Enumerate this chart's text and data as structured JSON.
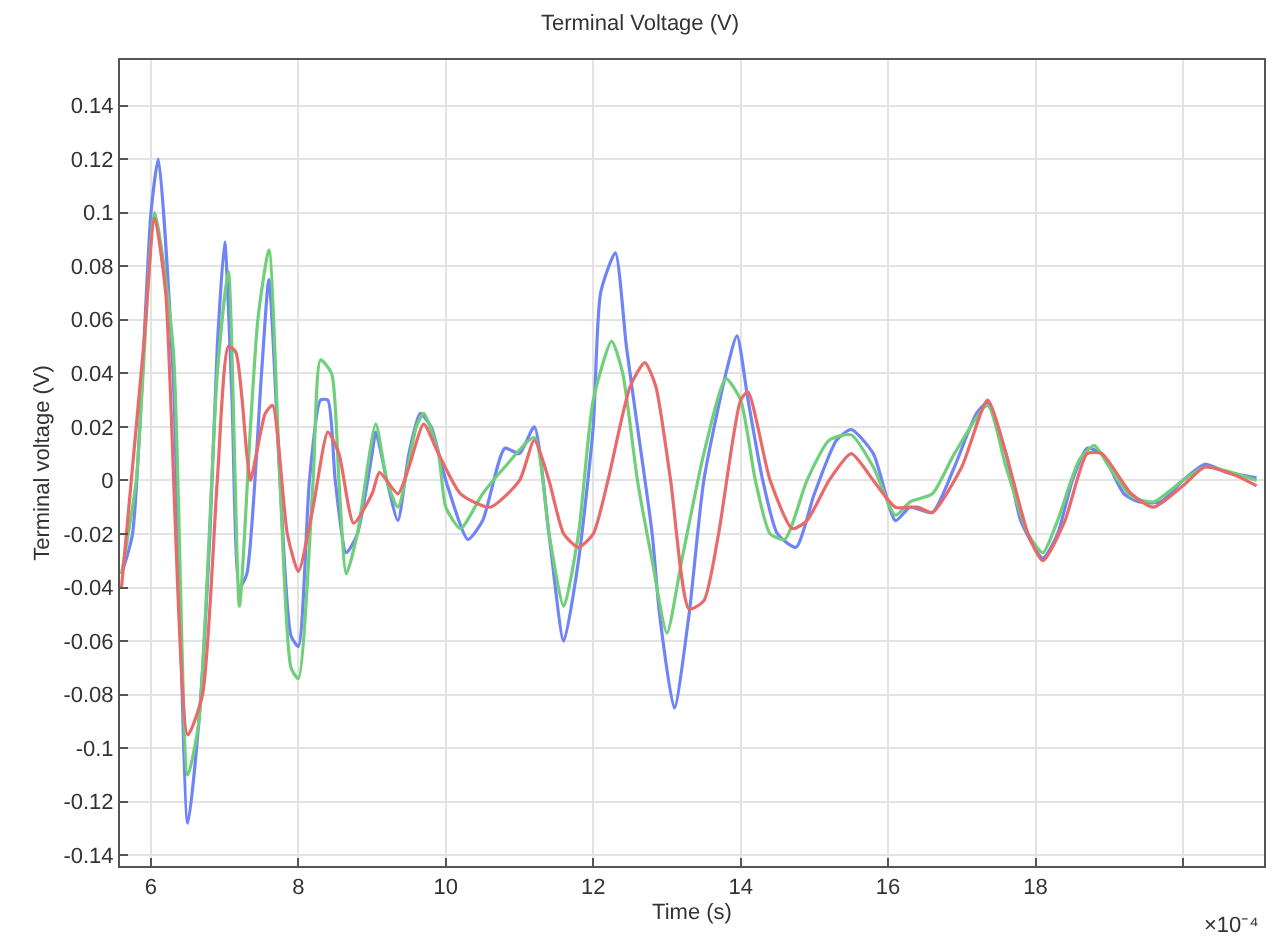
{
  "chart_data": {
    "type": "line",
    "title": "Terminal Voltage (V)",
    "xlabel": "Time (s)",
    "ylabel": "Terminal voltage (V)",
    "xlim": [
      5.58,
      21.1
    ],
    "xticks": [
      6,
      8,
      10,
      12,
      14,
      16,
      18,
      {
        "value": 20,
        "label": null
      }
    ],
    "ylim": [
      -0.144,
      0.157
    ],
    "yticks": [
      0.14,
      0.12,
      0.1,
      0.08,
      0.06,
      0.04,
      0.02,
      0,
      -0.02,
      -0.04,
      -0.06,
      -0.08,
      -0.1,
      -0.12,
      -0.14
    ],
    "annotations": [
      "×10⁻⁴"
    ],
    "grid": true,
    "marker": "none",
    "line_style": "solid",
    "series": [
      {
        "color": "#6f84f7",
        "x": [
          5.6,
          5.75,
          6.0,
          6.1,
          6.3,
          6.5,
          6.65,
          6.8,
          6.9,
          7.0,
          7.1,
          7.2,
          7.3,
          7.5,
          7.6,
          7.75,
          7.9,
          8.0,
          8.15,
          8.3,
          8.4,
          8.5,
          8.65,
          8.8,
          9.0,
          9.05,
          9.2,
          9.35,
          9.5,
          9.65,
          9.8,
          10.0,
          10.3,
          10.5,
          10.8,
          11.0,
          11.2,
          11.4,
          11.6,
          11.8,
          12.0,
          12.1,
          12.3,
          12.45,
          12.6,
          12.8,
          12.9,
          13.1,
          13.3,
          13.5,
          13.8,
          13.95,
          14.1,
          14.3,
          14.5,
          14.75,
          15.0,
          15.3,
          15.5,
          15.8,
          16.1,
          16.3,
          16.6,
          16.9,
          17.2,
          17.35,
          17.6,
          17.8,
          18.1,
          18.3,
          18.5,
          18.7,
          18.9,
          19.2,
          19.4,
          19.7,
          20.0,
          20.3,
          20.6,
          21.0
        ],
        "values": [
          -0.035,
          -0.02,
          0.1,
          0.12,
          0.04,
          -0.128,
          -0.09,
          -0.02,
          0.05,
          0.089,
          0.03,
          -0.04,
          -0.035,
          0.04,
          0.075,
          0.0,
          -0.058,
          -0.062,
          0.0,
          0.03,
          0.03,
          0.0,
          -0.027,
          -0.02,
          0.01,
          0.018,
          0.0,
          -0.015,
          0.01,
          0.025,
          0.02,
          0.0,
          -0.022,
          -0.015,
          0.012,
          0.01,
          0.02,
          -0.02,
          -0.06,
          -0.03,
          0.02,
          0.07,
          0.085,
          0.05,
          0.02,
          -0.02,
          -0.05,
          -0.085,
          -0.05,
          0.0,
          0.04,
          0.054,
          0.03,
          0.0,
          -0.02,
          -0.025,
          -0.005,
          0.015,
          0.019,
          0.01,
          -0.015,
          -0.01,
          -0.012,
          0.005,
          0.025,
          0.029,
          0.01,
          -0.015,
          -0.029,
          -0.02,
          0.0,
          0.012,
          0.01,
          -0.005,
          -0.008,
          -0.008,
          0.0,
          0.006,
          0.003,
          0.001
        ]
      },
      {
        "color": "#6fcf7a",
        "x": [
          5.6,
          5.8,
          6.05,
          6.3,
          6.5,
          6.65,
          6.9,
          7.05,
          7.2,
          7.35,
          7.45,
          7.6,
          7.75,
          7.9,
          8.0,
          8.2,
          8.3,
          8.45,
          8.55,
          8.65,
          8.8,
          9.05,
          9.2,
          9.35,
          9.6,
          9.7,
          9.9,
          10.0,
          10.2,
          10.5,
          10.8,
          11.2,
          11.4,
          11.6,
          11.8,
          12.0,
          12.25,
          12.4,
          12.6,
          12.8,
          13.0,
          13.2,
          13.5,
          13.8,
          14.0,
          14.2,
          14.4,
          14.6,
          14.9,
          15.2,
          15.5,
          15.8,
          16.1,
          16.3,
          16.6,
          16.9,
          17.35,
          17.6,
          17.9,
          18.1,
          18.3,
          18.6,
          18.8,
          19.0,
          19.3,
          19.6,
          20.0,
          20.3,
          21.0
        ],
        "values": [
          -0.035,
          0.0,
          0.1,
          0.05,
          -0.11,
          -0.09,
          0.04,
          0.078,
          -0.047,
          0.02,
          0.06,
          0.086,
          0.0,
          -0.07,
          -0.074,
          0.0,
          0.045,
          0.04,
          0.0,
          -0.035,
          -0.02,
          0.021,
          0.0,
          -0.01,
          0.02,
          0.025,
          0.01,
          -0.01,
          -0.018,
          -0.005,
          0.005,
          0.016,
          -0.02,
          -0.047,
          -0.02,
          0.03,
          0.052,
          0.04,
          0.0,
          -0.03,
          -0.057,
          -0.03,
          0.01,
          0.038,
          0.03,
          0.0,
          -0.02,
          -0.022,
          0.0,
          0.015,
          0.017,
          0.005,
          -0.013,
          -0.008,
          -0.005,
          0.01,
          0.028,
          0.005,
          -0.02,
          -0.027,
          -0.015,
          0.008,
          0.013,
          0.005,
          -0.006,
          -0.008,
          0.0,
          0.005,
          0.0
        ]
      },
      {
        "color": "#e96a6a",
        "x": [
          5.6,
          5.9,
          6.05,
          6.2,
          6.5,
          6.7,
          6.9,
          7.05,
          7.15,
          7.3,
          7.35,
          7.55,
          7.65,
          7.85,
          8.0,
          8.2,
          8.4,
          8.55,
          8.75,
          9.0,
          9.1,
          9.35,
          9.5,
          9.7,
          9.9,
          10.2,
          10.6,
          11.0,
          11.2,
          11.4,
          11.6,
          11.8,
          12.0,
          12.2,
          12.5,
          12.7,
          12.85,
          13.05,
          13.3,
          13.5,
          13.7,
          14.0,
          14.1,
          14.4,
          14.7,
          14.9,
          15.2,
          15.5,
          15.8,
          16.1,
          16.4,
          16.6,
          17.0,
          17.35,
          17.6,
          17.9,
          18.1,
          18.4,
          18.7,
          18.9,
          19.3,
          19.6,
          20.0,
          20.3,
          20.7,
          21.0
        ],
        "values": [
          -0.04,
          0.05,
          0.098,
          0.07,
          -0.095,
          -0.08,
          0.0,
          0.05,
          0.048,
          0.01,
          0.0,
          0.025,
          0.028,
          -0.02,
          -0.034,
          -0.01,
          0.018,
          0.01,
          -0.016,
          -0.005,
          0.003,
          -0.005,
          0.005,
          0.021,
          0.01,
          -0.005,
          -0.01,
          0.0,
          0.015,
          0.0,
          -0.02,
          -0.025,
          -0.02,
          0.0,
          0.035,
          0.044,
          0.035,
          0.0,
          -0.048,
          -0.045,
          -0.02,
          0.03,
          0.033,
          0.0,
          -0.018,
          -0.015,
          0.0,
          0.01,
          0.0,
          -0.01,
          -0.01,
          -0.012,
          0.005,
          0.03,
          0.01,
          -0.02,
          -0.03,
          -0.015,
          0.01,
          0.01,
          -0.005,
          -0.01,
          -0.002,
          0.005,
          0.002,
          -0.002
        ]
      }
    ]
  }
}
